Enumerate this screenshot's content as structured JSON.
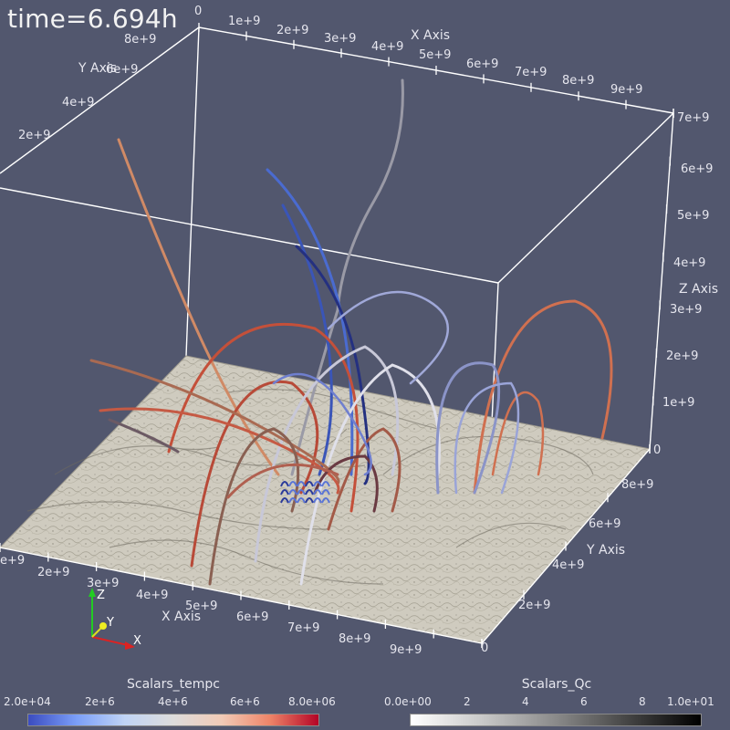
{
  "time_label": "time=6.694h",
  "axes": {
    "x_title": "X Axis",
    "y_title": "Y Axis",
    "z_title": "Z Axis",
    "x_ticks_top": [
      "0",
      "1e+9",
      "2e+9",
      "3e+9",
      "4e+9",
      "5e+9",
      "6e+9",
      "7e+9",
      "8e+9",
      "9e+9"
    ],
    "x_ticks_bottom": [
      "2e+9",
      "3e+9",
      "4e+9",
      "5e+9",
      "6e+9",
      "7e+9",
      "8e+9",
      "9e+9"
    ],
    "y_ticks_right": [
      "0",
      "2e+9",
      "4e+9",
      "6e+9",
      "8e+9"
    ],
    "y_ticks_left": [
      "8e+9",
      "6e+9",
      "4e+9",
      "2e+9"
    ],
    "z_ticks": [
      "0",
      "1e+9",
      "2e+9",
      "3e+9",
      "4e+9",
      "5e+9",
      "6e+9",
      "7e+9"
    ],
    "left_edge_tick": "e+9"
  },
  "orientation_axes": {
    "x": "X",
    "y": "Y",
    "z": "Z"
  },
  "colorbars": {
    "temp": {
      "title": "Scalars_tempc",
      "ticks": [
        "2.0e+04",
        "2e+6",
        "4e+6",
        "6e+6",
        "8.0e+06"
      ]
    },
    "qc": {
      "title": "Scalars_Qc",
      "ticks": [
        "0.0e+00",
        "2",
        "4",
        "6",
        "8",
        "1.0e+01"
      ]
    }
  },
  "colors": {
    "background": "#52576e",
    "plane": "#cdc9bd",
    "box_lines": "#ffffff",
    "cool": "#3b4cc0",
    "warm": "#b40426"
  }
}
